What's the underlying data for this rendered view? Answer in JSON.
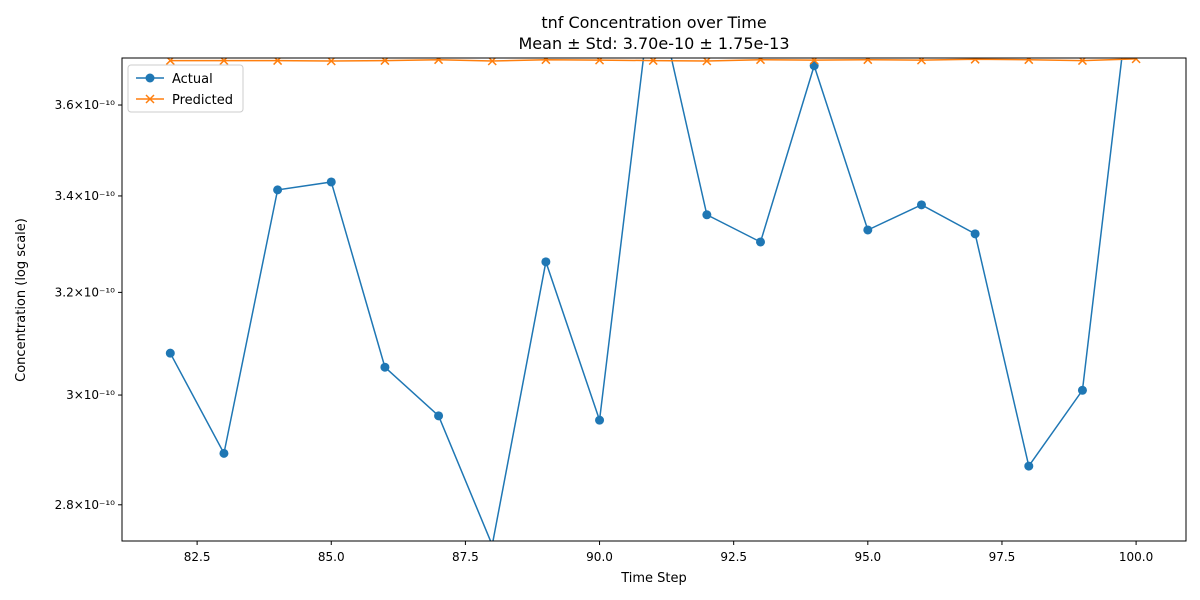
{
  "chart_data": {
    "type": "line",
    "title": "tnf Concentration over Time",
    "subtitle": "Mean ± Std: 3.70e-10 ± 1.75e-13",
    "x_label": "Time Step",
    "y_label": "Concentration (log scale)",
    "x": [
      82,
      83,
      84,
      85,
      86,
      87,
      88,
      89,
      90,
      91,
      92,
      93,
      94,
      95,
      96,
      97,
      98,
      99,
      100
    ],
    "series": [
      {
        "name": "Actual",
        "color": "#1f77b4",
        "marker": "o",
        "values": [
          3.08e-10,
          2.892e-10,
          3.413e-10,
          3.43e-10,
          3.053e-10,
          2.961e-10,
          2.73e-10,
          3.262e-10,
          2.953e-10,
          3.9e-10,
          3.36e-10,
          3.303e-10,
          3.69e-10,
          3.328e-10,
          3.381e-10,
          3.32e-10,
          2.869e-10,
          3.009e-10,
          4e-10
        ]
      },
      {
        "name": "Predicted",
        "color": "#ff7f0e",
        "marker": "x",
        "values": [
          3.702e-10,
          3.702e-10,
          3.702e-10,
          3.701e-10,
          3.702e-10,
          3.704e-10,
          3.701e-10,
          3.704e-10,
          3.703e-10,
          3.702e-10,
          3.701e-10,
          3.704e-10,
          3.703e-10,
          3.704e-10,
          3.703e-10,
          3.705e-10,
          3.704e-10,
          3.702e-10,
          3.706e-10
        ]
      }
    ],
    "xlim": [
      81.1,
      100.93
    ],
    "ylim": [
      2.737e-10,
      3.708e-10
    ],
    "log_y": true,
    "xticks": [
      82.5,
      {
        "value": 85,
        "label": "85.0"
      },
      87.5,
      {
        "value": 90,
        "label": "90.0"
      },
      92.5,
      {
        "value": 95,
        "label": "95.0"
      },
      97.5,
      {
        "value": 100,
        "label": "100.0"
      }
    ],
    "yticks": [
      {
        "value": 2.8e-10,
        "label": "2.8×10⁻¹⁰"
      },
      {
        "value": 3e-10,
        "label": "3×10⁻¹⁰"
      },
      {
        "value": 3.2e-10,
        "label": "3.2×10⁻¹⁰"
      },
      {
        "value": 3.4e-10,
        "label": "3.4×10⁻¹⁰"
      },
      {
        "value": 3.6e-10,
        "label": "3.6×10⁻¹⁰"
      }
    ],
    "legend": "upper left",
    "grid": false
  }
}
